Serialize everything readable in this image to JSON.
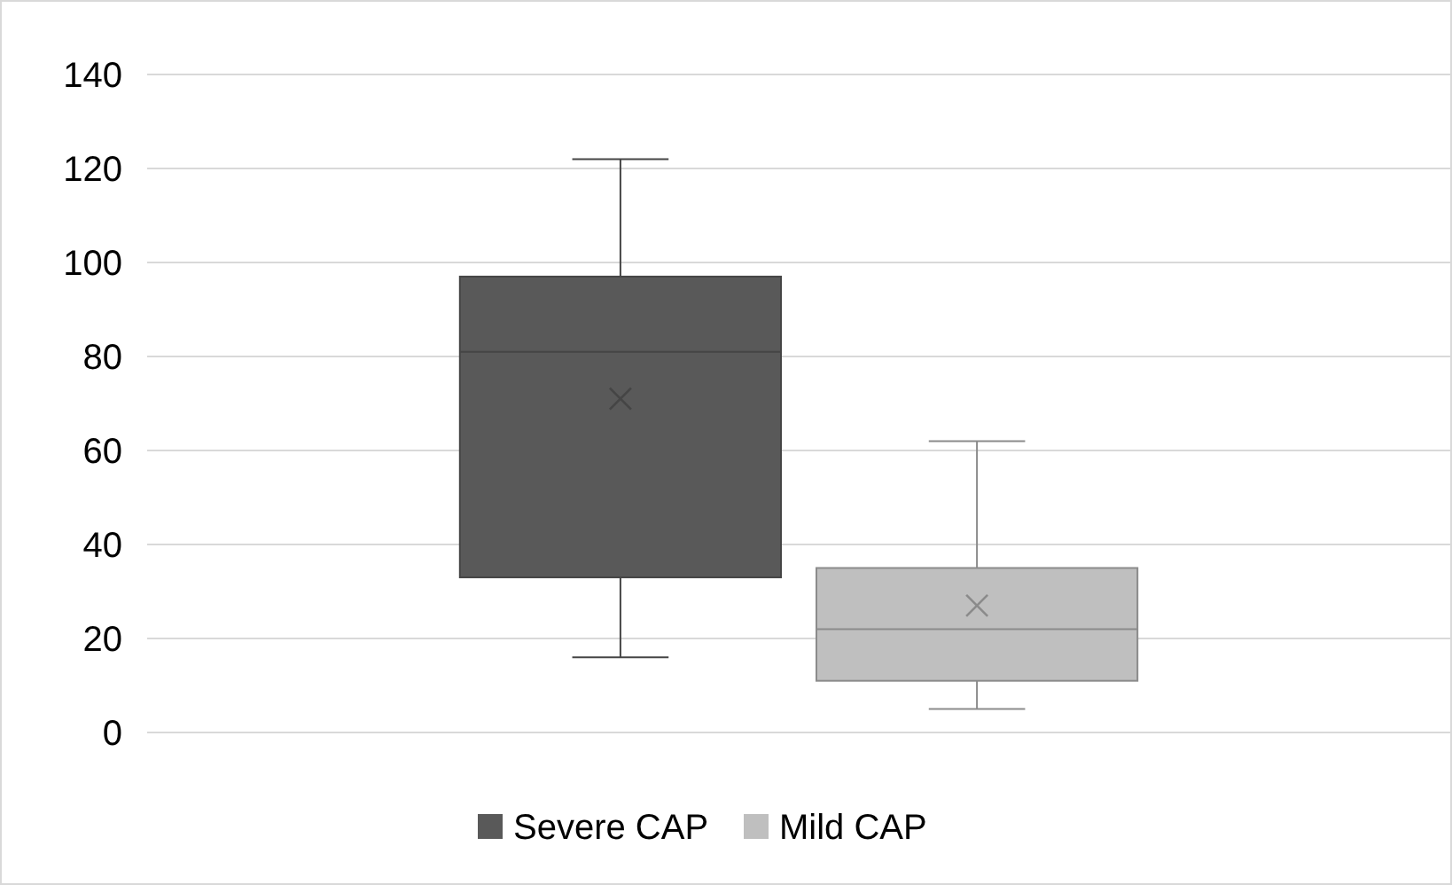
{
  "chart_data": {
    "type": "box",
    "categories": [
      null
    ],
    "ylim": [
      0,
      140
    ],
    "yticks": [
      0,
      20,
      40,
      60,
      80,
      100,
      120,
      140
    ],
    "grid": "y",
    "legend": "bottom",
    "marker": "cross",
    "series": [
      {
        "name": "Severe CAP",
        "color": "#595959",
        "boxes": [
          {
            "low": 16,
            "q1": 33,
            "median": 81,
            "q3": 97,
            "high": 122,
            "mean": 71
          }
        ]
      },
      {
        "name": "Mild CAP",
        "color": "#bfbfbf",
        "boxes": [
          {
            "low": 5,
            "q1": 11,
            "median": 22,
            "q3": 35,
            "high": 62,
            "mean": 27
          }
        ]
      }
    ]
  }
}
